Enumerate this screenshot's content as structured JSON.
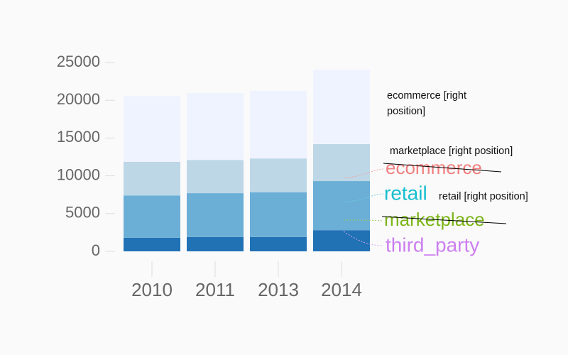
{
  "chart_data": {
    "type": "bar",
    "stacked": true,
    "categories": [
      "2010",
      "2011",
      "2013",
      "2014"
    ],
    "series": [
      {
        "name": "third_party",
        "color": "#2171b5",
        "label_color": "#cc80f0",
        "values": [
          1800,
          1900,
          1900,
          2800
        ]
      },
      {
        "name": "retail",
        "color": "#6baed6",
        "label_color": "#17becf",
        "values": [
          5600,
          5800,
          5900,
          6500
        ]
      },
      {
        "name": "marketplace",
        "color": "#bdd7e7",
        "label_color": "#7cb518",
        "values": [
          4450,
          4400,
          4500,
          4900
        ]
      },
      {
        "name": "ecommerce",
        "color": "#eff3ff",
        "label_color": "#f08080",
        "values": [
          8700,
          8850,
          8950,
          9850
        ]
      }
    ],
    "annotations": [
      "ecommerce [right position]",
      "marketplace [right position]",
      "retail [right position]"
    ],
    "ylim": [
      0,
      25000
    ],
    "yticks": [
      0,
      5000,
      10000,
      15000,
      20000,
      25000
    ],
    "grid": false
  }
}
